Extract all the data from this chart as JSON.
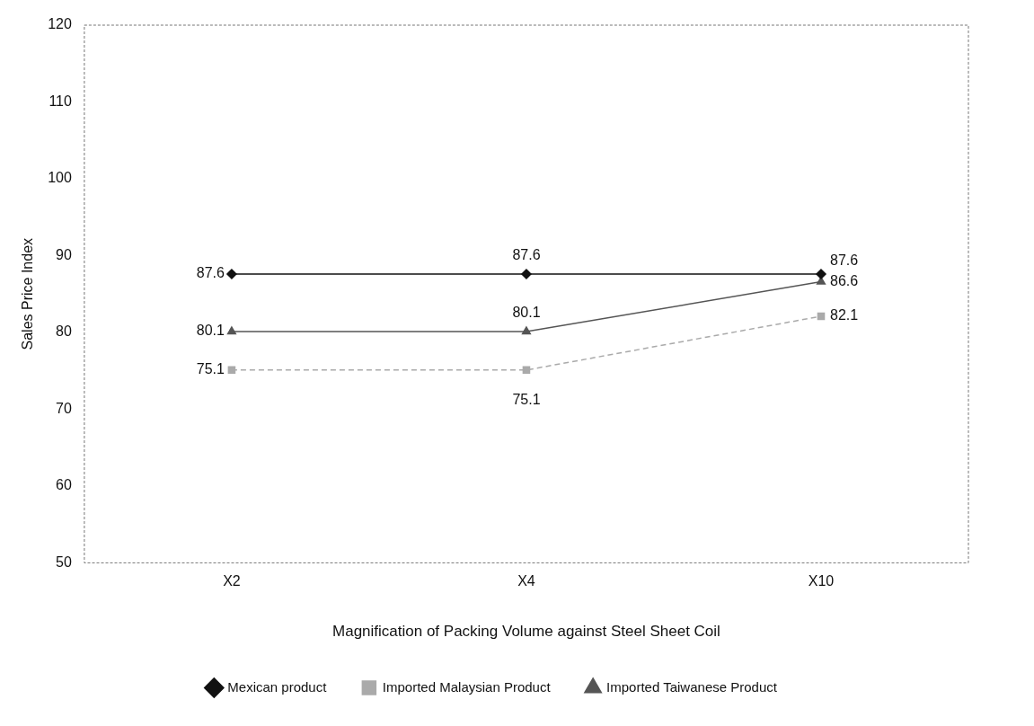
{
  "chart_data": {
    "type": "line",
    "xlabel": "Magnification of Packing Volume against Steel Sheet Coil",
    "ylabel": "Sales Price Index",
    "categories": [
      "X2",
      "X4",
      "X10"
    ],
    "series": [
      {
        "name": "Mexican product",
        "color": "#111111",
        "values": [
          87.6,
          87.6,
          87.6
        ],
        "marker": "diamond",
        "line_style": "solid"
      },
      {
        "name": "Imported Malaysian Product",
        "color": "#aaaaaa",
        "values": [
          75.1,
          75.1,
          82.1
        ],
        "marker": "square",
        "line_style": "dashed"
      },
      {
        "name": "Imported Taiwanese Product",
        "color": "#555555",
        "values": [
          80.1,
          80.1,
          86.6
        ],
        "marker": "triangle",
        "line_style": "solid"
      }
    ],
    "ylim": [
      50,
      120
    ],
    "yticks": [
      50,
      60,
      70,
      80,
      90,
      100,
      110,
      120
    ],
    "grid": false,
    "legend": "bottom",
    "data_labels": true
  }
}
